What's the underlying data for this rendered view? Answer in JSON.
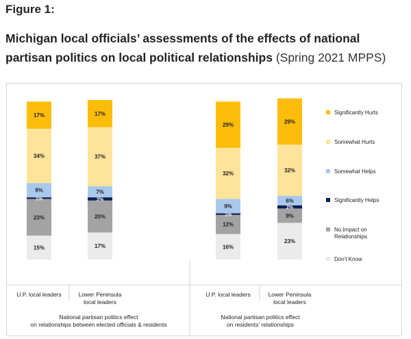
{
  "figure": {
    "label": "Figure 1:",
    "title": "Michigan local officials’ assessments of the effects of national partisan politics on local political relationships",
    "source": "(Spring 2021 MPPS)"
  },
  "chart_data": {
    "type": "bar",
    "stacked": true,
    "percent": true,
    "categories": [
      "U.P. local leaders",
      "Lower Peninsula local leaders",
      "U.P. local leaders",
      "Lower Peninsula local leaders"
    ],
    "category_lines": [
      [
        "U.P. local leaders"
      ],
      [
        "Lower Peninsula",
        "local leaders"
      ],
      [
        "U.P. local leaders"
      ],
      [
        "Lower Peninsula",
        "local leaders"
      ]
    ],
    "groups": [
      {
        "lines": [
          "National partisan politics effect",
          "on relationships between elected officials & residents"
        ],
        "categories": [
          0,
          1
        ]
      },
      {
        "lines": [
          "National partisan politics effect",
          "on residents’ relationships"
        ],
        "categories": [
          2,
          3
        ]
      }
    ],
    "series": [
      {
        "name": "Don't Know",
        "color": "#ebebeb",
        "values": [
          15,
          17,
          16,
          23
        ]
      },
      {
        "name": "No Impact on Relationships",
        "legend_lines": [
          "No Impact on",
          "Relationships"
        ],
        "color": "#a3a3a3",
        "values": [
          23,
          20,
          12,
          9
        ]
      },
      {
        "name": "Significantly Helps",
        "color": "#0d1f52",
        "values": [
          1,
          2,
          1,
          2
        ]
      },
      {
        "name": "Somewhat Helps",
        "color": "#a9c9ec",
        "values": [
          9,
          7,
          9,
          6
        ]
      },
      {
        "name": "Somewhat Hurts",
        "color": "#fde49a",
        "values": [
          34,
          37,
          32,
          32
        ]
      },
      {
        "name": "Significantly Hurts",
        "color": "#fbbd0a",
        "values": [
          17,
          17,
          29,
          29
        ]
      }
    ],
    "legend_order": [
      "Significantly Hurts",
      "Somewhat Hurts",
      "Somewhat Helps",
      "Significantly Helps",
      "No Impact on Relationships",
      "Don't Know"
    ],
    "legend_position": "right",
    "ylim": [
      0,
      100
    ],
    "grid": false
  }
}
